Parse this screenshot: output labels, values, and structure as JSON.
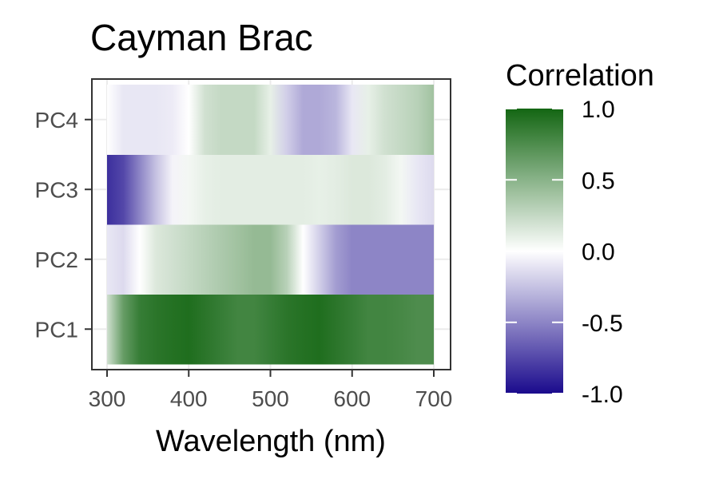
{
  "chart_data": {
    "type": "heatmap",
    "title": "Cayman Brac",
    "xlabel": "Wavelength (nm)",
    "ylabel": "",
    "xlim": [
      300,
      700
    ],
    "x_ticks": [
      "300",
      "400",
      "500",
      "600",
      "700"
    ],
    "rows": [
      "PC1",
      "PC2",
      "PC3",
      "PC4"
    ],
    "grid": true,
    "colorbar": {
      "title": "Correlation",
      "range": [
        -1.0,
        1.0
      ],
      "ticks": [
        "1.0",
        "0.5",
        "0.0",
        "-0.5",
        "-1.0"
      ],
      "tick_values": [
        1.0,
        0.5,
        0.0,
        -0.5,
        -1.0
      ],
      "colors": {
        "low": "#1a0a8c",
        "mid": "#ffffff",
        "high": "#136612"
      },
      "placement": "right"
    },
    "series": [
      {
        "row": "PC1",
        "wavelength": [
          300,
          320,
          340,
          360,
          380,
          400,
          420,
          440,
          460,
          480,
          500,
          520,
          540,
          560,
          580,
          600,
          620,
          640,
          660,
          680,
          700
        ],
        "correlation": [
          0.2,
          0.65,
          0.85,
          0.9,
          0.93,
          0.95,
          0.9,
          0.85,
          0.8,
          0.8,
          0.85,
          0.9,
          0.93,
          0.95,
          0.9,
          0.85,
          0.8,
          0.8,
          0.78,
          0.75,
          0.75
        ]
      },
      {
        "row": "PC2",
        "wavelength": [
          300,
          320,
          340,
          360,
          380,
          400,
          420,
          440,
          460,
          480,
          500,
          520,
          540,
          560,
          580,
          600,
          620,
          640,
          660,
          680,
          700
        ],
        "correlation": [
          -0.1,
          -0.15,
          0.0,
          0.15,
          0.2,
          0.25,
          0.3,
          0.35,
          0.4,
          0.45,
          0.45,
          0.3,
          0.0,
          -0.2,
          -0.4,
          -0.5,
          -0.5,
          -0.5,
          -0.5,
          -0.5,
          -0.5
        ]
      },
      {
        "row": "PC3",
        "wavelength": [
          300,
          320,
          340,
          360,
          380,
          400,
          420,
          440,
          460,
          480,
          500,
          520,
          540,
          560,
          580,
          600,
          620,
          640,
          660,
          680,
          700
        ],
        "correlation": [
          -0.85,
          -0.75,
          -0.5,
          -0.25,
          -0.05,
          0.05,
          0.1,
          0.12,
          0.12,
          0.12,
          0.12,
          0.12,
          0.12,
          0.1,
          0.12,
          0.15,
          0.15,
          0.12,
          0.05,
          -0.1,
          -0.15
        ]
      },
      {
        "row": "PC4",
        "wavelength": [
          300,
          320,
          340,
          360,
          380,
          400,
          420,
          440,
          460,
          480,
          500,
          520,
          540,
          560,
          580,
          600,
          620,
          640,
          660,
          680,
          700
        ],
        "correlation": [
          0.0,
          -0.1,
          -0.1,
          -0.1,
          -0.08,
          0.0,
          0.2,
          0.25,
          0.25,
          0.25,
          0.1,
          -0.2,
          -0.35,
          -0.35,
          -0.3,
          -0.1,
          0.1,
          0.2,
          0.25,
          0.3,
          0.4
        ]
      }
    ]
  }
}
